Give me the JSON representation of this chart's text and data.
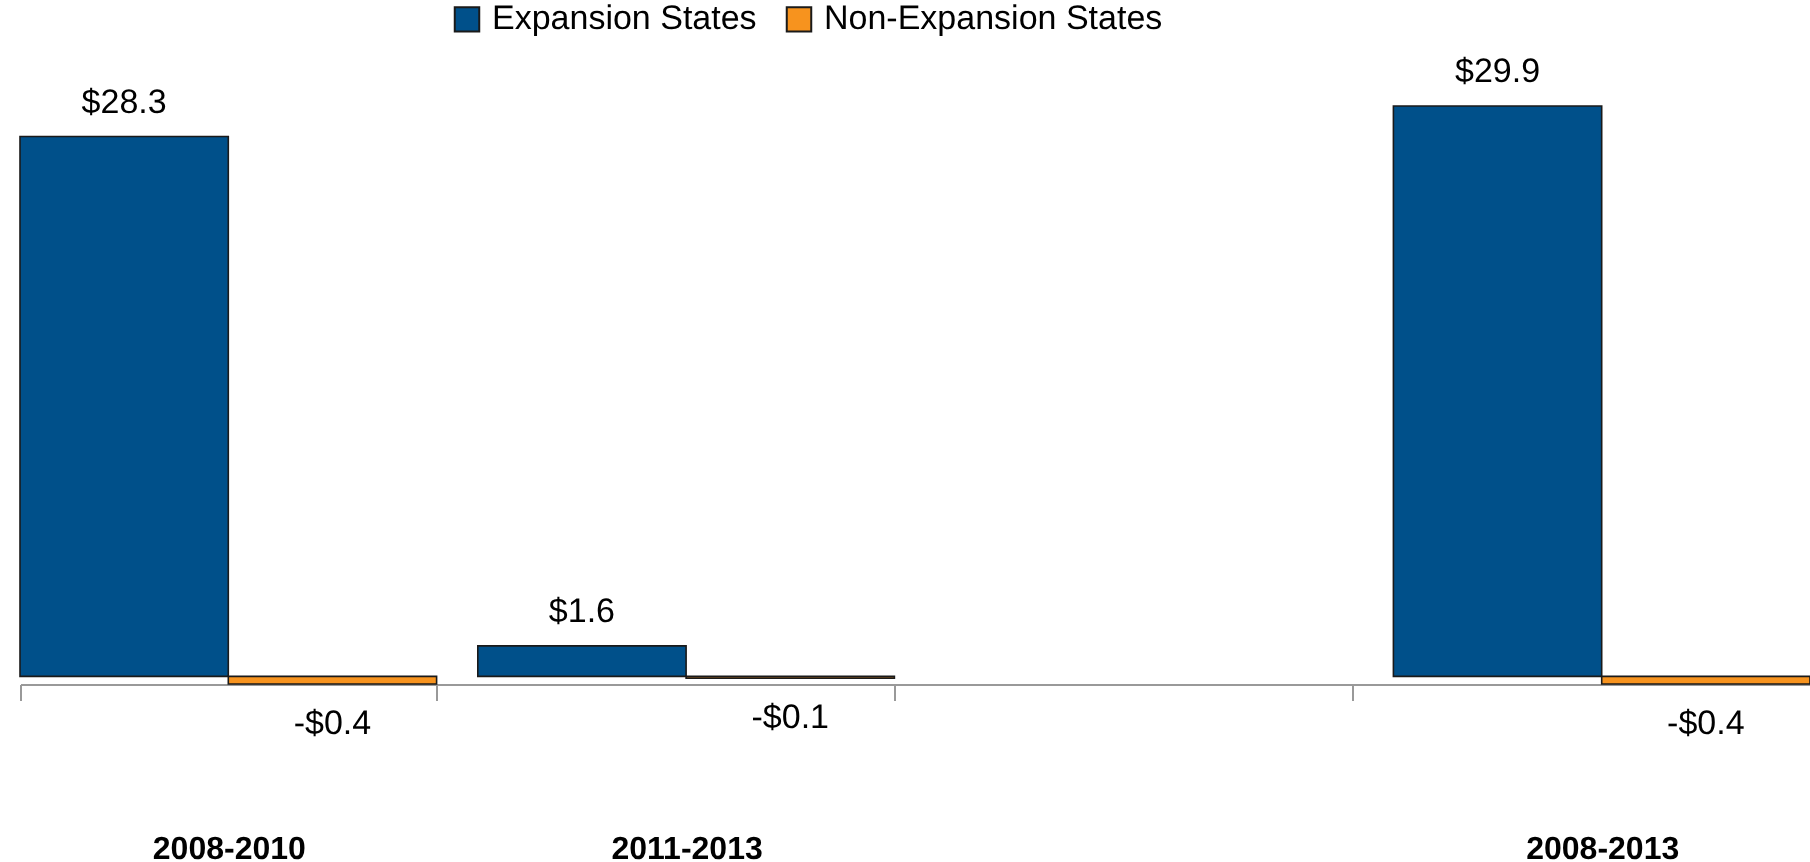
{
  "chart_data": {
    "type": "bar",
    "categories": [
      "2008-2010",
      "2011-2013",
      null,
      "2008-2013"
    ],
    "series": [
      {
        "name": "Expansion States",
        "color": "#00508a",
        "values": [
          28.3,
          1.6,
          null,
          29.9
        ],
        "value_labels": [
          "$28.3",
          "$1.6",
          null,
          "$29.9"
        ]
      },
      {
        "name": "Non-Expansion States",
        "color": "#f7931e",
        "values": [
          -0.4,
          -0.1,
          null,
          -0.4
        ],
        "value_labels": [
          "-$0.4",
          "-$0.1",
          null,
          "-$0.4"
        ]
      }
    ],
    "legend": "top"
  }
}
